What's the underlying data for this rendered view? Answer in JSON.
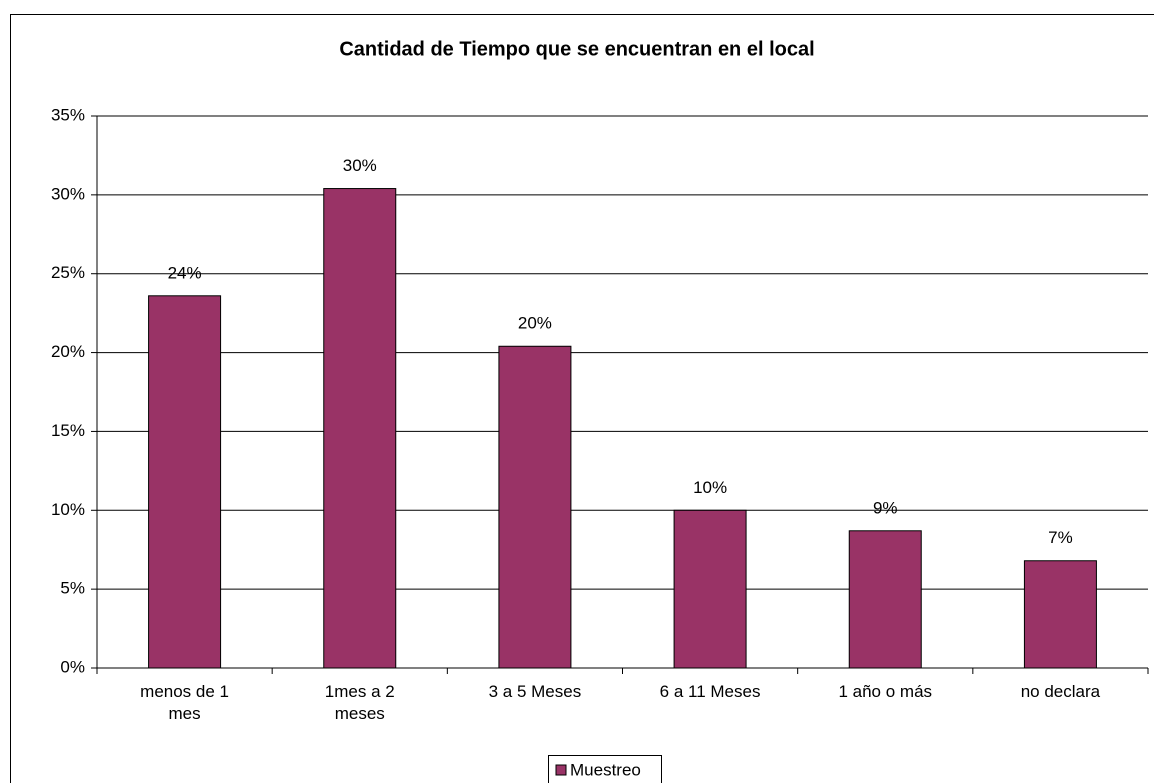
{
  "chart_data": {
    "type": "bar",
    "title": "Cantidad de Tiempo que se encuentran en el local",
    "categories": [
      "menos de 1 mes",
      "1mes a 2 meses",
      "3 a 5 Meses",
      "6 a 11 Meses",
      "1 año o más",
      "no declara"
    ],
    "series": [
      {
        "name": "Muestreo",
        "color": "#993366",
        "values": [
          23.6,
          30.4,
          20.4,
          10.0,
          8.7,
          6.8
        ],
        "value_labels": [
          "24%",
          "30%",
          "20%",
          "10%",
          "9%",
          "7%"
        ]
      }
    ],
    "ylim": [
      0,
      35
    ],
    "yticks": [
      {
        "value": 0,
        "label": "0%"
      },
      {
        "value": 5,
        "label": "5%"
      },
      {
        "value": 10,
        "label": "10%"
      },
      {
        "value": 15,
        "label": "15%"
      },
      {
        "value": 20,
        "label": "20%"
      },
      {
        "value": 25,
        "label": "25%"
      },
      {
        "value": 30,
        "label": "30%"
      },
      {
        "value": 35,
        "label": "35%"
      }
    ],
    "grid": true,
    "legend": "bottom"
  }
}
